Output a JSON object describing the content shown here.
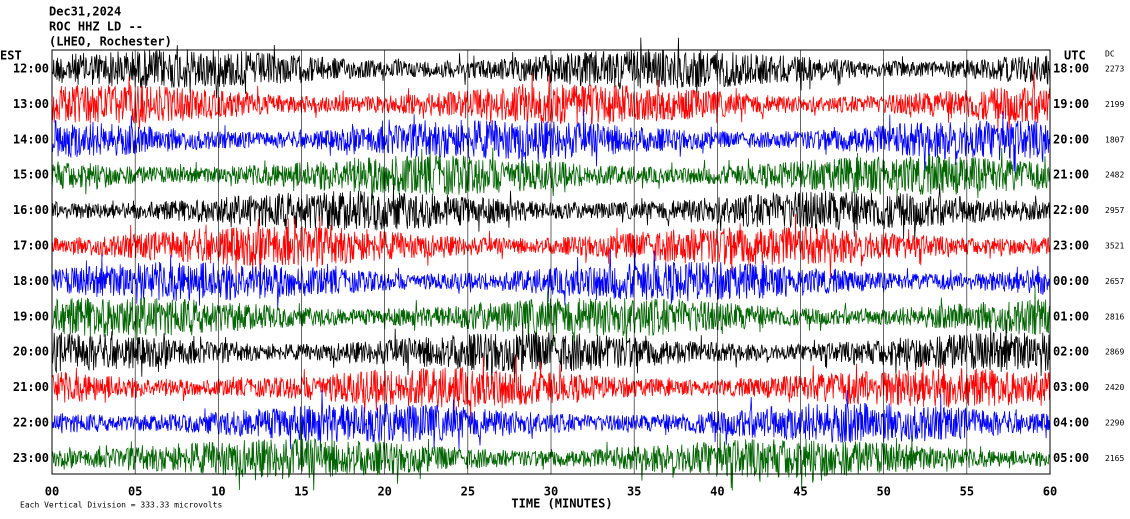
{
  "header": {
    "date": "Dec31,2024",
    "station": "ROC HHZ LD --",
    "location": "(LHEO, Rochester)"
  },
  "left_axis_title": "EST",
  "right_axis_title": "UTC",
  "dc_title": "DC",
  "rows": [
    {
      "est": "12:00",
      "utc": "18:00",
      "dc": "2273",
      "color": "#000000"
    },
    {
      "est": "13:00",
      "utc": "19:00",
      "dc": "2199",
      "color": "#ff0000"
    },
    {
      "est": "14:00",
      "utc": "20:00",
      "dc": "1807",
      "color": "#0000ff"
    },
    {
      "est": "15:00",
      "utc": "21:00",
      "dc": "2482",
      "color": "#006400"
    },
    {
      "est": "16:00",
      "utc": "22:00",
      "dc": "2957",
      "color": "#000000"
    },
    {
      "est": "17:00",
      "utc": "23:00",
      "dc": "3521",
      "color": "#ff0000"
    },
    {
      "est": "18:00",
      "utc": "00:00",
      "dc": "2657",
      "color": "#0000ff"
    },
    {
      "est": "19:00",
      "utc": "01:00",
      "dc": "2816",
      "color": "#006400"
    },
    {
      "est": "20:00",
      "utc": "02:00",
      "dc": "2869",
      "color": "#000000"
    },
    {
      "est": "21:00",
      "utc": "03:00",
      "dc": "2420",
      "color": "#ff0000"
    },
    {
      "est": "22:00",
      "utc": "04:00",
      "dc": "2290",
      "color": "#0000ff"
    },
    {
      "est": "23:00",
      "utc": "05:00",
      "dc": "2165",
      "color": "#006400"
    }
  ],
  "x_axis": {
    "title": "TIME (MINUTES)",
    "ticks": [
      "00",
      "05",
      "10",
      "15",
      "20",
      "25",
      "30",
      "35",
      "40",
      "45",
      "50",
      "55",
      "60"
    ]
  },
  "footnote": "Each Vertical Division = 333.33 microvolts"
}
